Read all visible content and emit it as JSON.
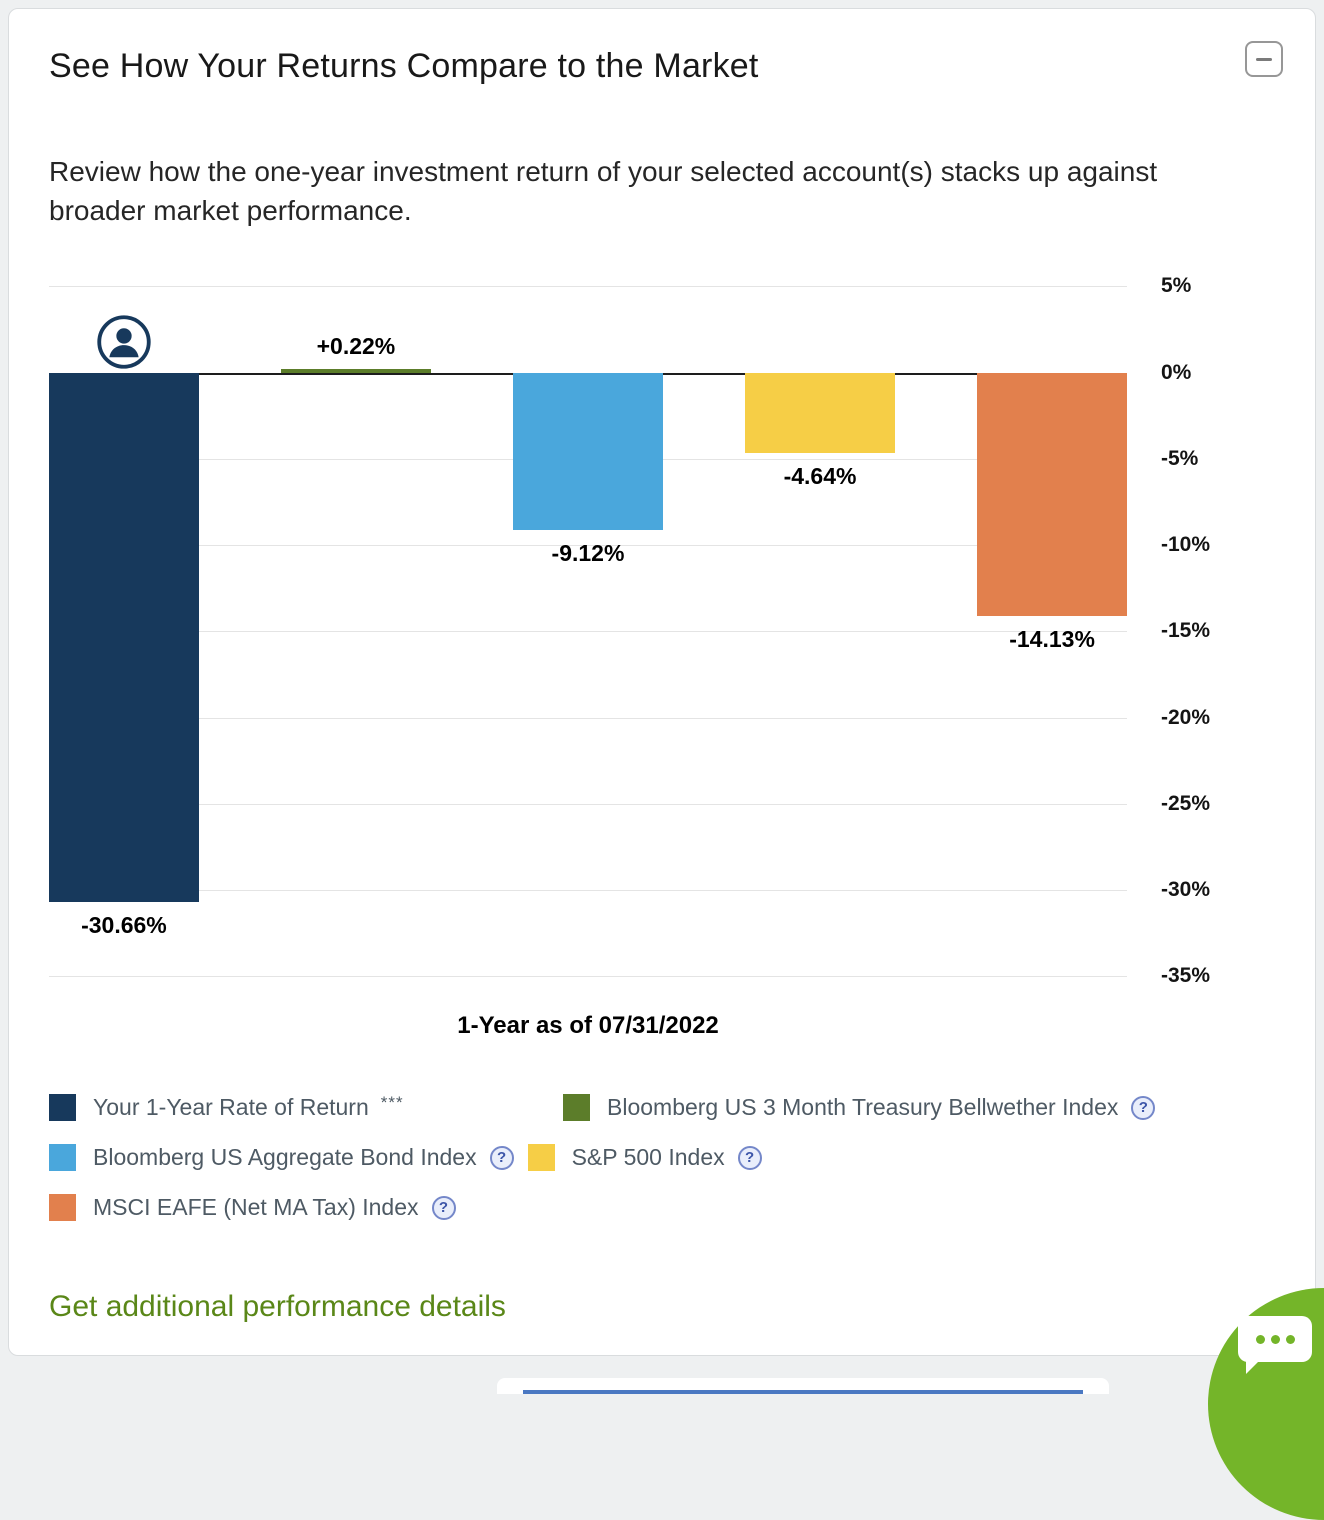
{
  "panel": {
    "title": "See How Your Returns Compare to the Market",
    "subtitle": "Review how the one-year investment return of your selected account(s) stacks up against broader market performance.",
    "link": "Get additional performance details"
  },
  "chart_data": {
    "type": "bar",
    "categories": [
      "Your 1-Year Rate of Return",
      "Bloomberg US 3 Month Treasury Bellwether Index",
      "Bloomberg US Aggregate Bond Index",
      "S&P 500 Index",
      "MSCI EAFE (Net MA Tax) Index"
    ],
    "values": [
      -30.66,
      0.22,
      -9.12,
      -4.64,
      -14.13
    ],
    "value_labels": [
      "-30.66%",
      "+0.22%",
      "-9.12%",
      "-4.64%",
      "-14.13%"
    ],
    "colors": [
      "#17395c",
      "#5c7d2a",
      "#4aa7dc",
      "#f6ce46",
      "#e2804d"
    ],
    "title": "See How Your Returns Compare to the Market",
    "xlabel": "1-Year as of 07/31/2022",
    "ylabel": "",
    "ylim": [
      -35,
      5
    ],
    "ytick_values": [
      5,
      0,
      -5,
      -10,
      -15,
      -20,
      -25,
      -30,
      -35
    ],
    "ytick_labels": [
      "5%",
      "0%",
      "-5%",
      "-10%",
      "-15%",
      "-20%",
      "-25%",
      "-30%",
      "-35%"
    ],
    "grid": true,
    "legend_position": "bottom"
  },
  "legend_rows": [
    [
      {
        "label": "Your 1-Year Rate of Return",
        "suffix": "***",
        "color": "#17395c",
        "help": false
      },
      {
        "label": "Bloomberg US 3 Month Treasury Bellwether Index",
        "color": "#5c7d2a",
        "help": true
      }
    ],
    [
      {
        "label": "Bloomberg US Aggregate Bond Index",
        "color": "#4aa7dc",
        "help": true
      },
      {
        "label": "S&P 500 Index",
        "color": "#f6ce46",
        "help": true
      }
    ],
    [
      {
        "label": "MSCI EAFE (Net MA Tax) Index",
        "color": "#e2804d",
        "help": true
      }
    ]
  ],
  "icons": {
    "help": "?",
    "collapse": "minus",
    "chat": "speech-bubble-dots",
    "account": "person-silhouette"
  }
}
